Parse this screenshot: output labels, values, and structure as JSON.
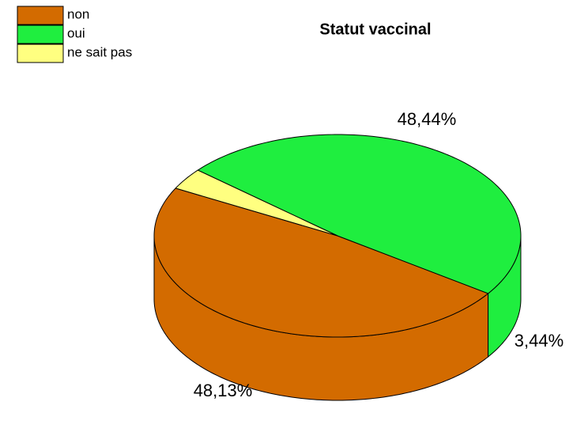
{
  "chart_data": {
    "type": "pie",
    "title": "Statut vaccinal",
    "categories": [
      "non",
      "oui",
      "ne sait pas"
    ],
    "values": [
      48.13,
      48.44,
      3.44
    ],
    "value_labels": [
      "48,13%",
      "48,44%",
      "3,44%"
    ],
    "colors": [
      "#d36b00",
      "#1fee3f",
      "#ffff80"
    ]
  }
}
